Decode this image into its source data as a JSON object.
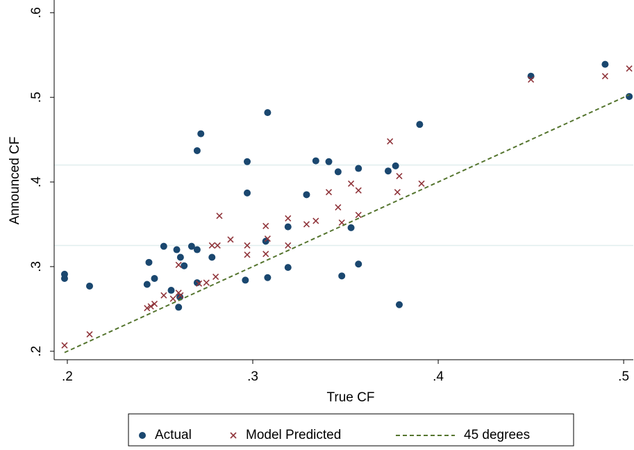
{
  "chart_data": {
    "type": "scatter",
    "x_label": "True CF",
    "y_label": "Announced CF",
    "xlim": [
      0.1929,
      0.5052
    ],
    "ylim": [
      0.19,
      0.615
    ],
    "xticks": [
      {
        "value": 0.2,
        "label": ".2"
      },
      {
        "value": 0.3,
        "label": ".3"
      },
      {
        "value": 0.4,
        "label": ".4"
      },
      {
        "value": 0.5,
        "label": ".5"
      }
    ],
    "yticks": [
      {
        "value": 0.2,
        "label": ".2"
      },
      {
        "value": 0.3,
        "label": ".3"
      },
      {
        "value": 0.4,
        "label": ".4"
      },
      {
        "value": 0.5,
        "label": ".5"
      },
      {
        "value": 0.6,
        "label": ".6"
      }
    ],
    "reference_lines": [
      0.42,
      0.325
    ],
    "legend": "bottom",
    "series": [
      {
        "name": "Actual",
        "color": "#1a476f",
        "marker": "dot",
        "x": [
          0.1985,
          0.1985,
          0.212,
          0.243,
          0.244,
          0.247,
          0.252,
          0.256,
          0.259,
          0.26,
          0.261,
          0.2607,
          0.263,
          0.267,
          0.27,
          0.27,
          0.27,
          0.272,
          0.278,
          0.296,
          0.297,
          0.297,
          0.307,
          0.308,
          0.308,
          0.319,
          0.319,
          0.329,
          0.334,
          0.341,
          0.346,
          0.348,
          0.353,
          0.357,
          0.357,
          0.373,
          0.377,
          0.379,
          0.39,
          0.45,
          0.49,
          0.503
        ],
        "values": [
          0.291,
          0.286,
          0.277,
          0.279,
          0.305,
          0.286,
          0.324,
          0.272,
          0.32,
          0.252,
          0.311,
          0.264,
          0.301,
          0.324,
          0.281,
          0.32,
          0.437,
          0.457,
          0.311,
          0.284,
          0.387,
          0.424,
          0.33,
          0.287,
          0.482,
          0.347,
          0.299,
          0.385,
          0.425,
          0.424,
          0.412,
          0.289,
          0.346,
          0.416,
          0.303,
          0.413,
          0.419,
          0.255,
          0.468,
          0.525,
          0.539,
          0.501
        ]
      },
      {
        "name": "Model Predicted",
        "color": "#90353b",
        "marker": "x",
        "x": [
          0.1985,
          0.212,
          0.243,
          0.245,
          0.247,
          0.252,
          0.257,
          0.26,
          0.261,
          0.26,
          0.271,
          0.275,
          0.278,
          0.281,
          0.28,
          0.282,
          0.288,
          0.297,
          0.297,
          0.307,
          0.307,
          0.308,
          0.319,
          0.319,
          0.329,
          0.334,
          0.341,
          0.346,
          0.348,
          0.353,
          0.357,
          0.357,
          0.374,
          0.378,
          0.379,
          0.391,
          0.45,
          0.49,
          0.503
        ],
        "values": [
          0.207,
          0.22,
          0.251,
          0.253,
          0.256,
          0.266,
          0.262,
          0.269,
          0.266,
          0.302,
          0.28,
          0.281,
          0.325,
          0.325,
          0.288,
          0.36,
          0.332,
          0.325,
          0.314,
          0.348,
          0.315,
          0.333,
          0.325,
          0.357,
          0.35,
          0.354,
          0.388,
          0.37,
          0.352,
          0.398,
          0.39,
          0.361,
          0.448,
          0.388,
          0.407,
          0.398,
          0.521,
          0.525,
          0.534
        ]
      },
      {
        "name": "45 degrees",
        "color": "#55752f",
        "marker": "dashed-line",
        "x": [
          0.1985,
          0.503
        ],
        "values": [
          0.1985,
          0.503
        ]
      }
    ]
  }
}
